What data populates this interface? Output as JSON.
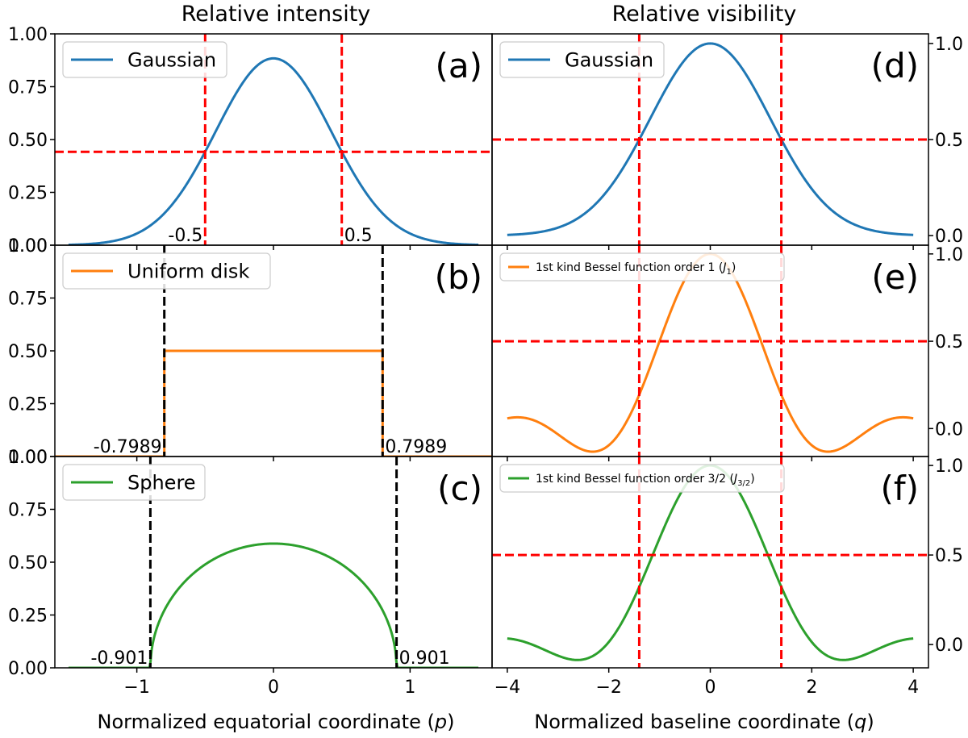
{
  "figure": {
    "left_title": "Relative intensity",
    "right_title": "Relative visibility",
    "left_xlabel_main": "Normalized equatorial coordinate (",
    "left_xlabel_var": "p",
    "left_xlabel_close": ")",
    "right_xlabel_main": "Normalized baseline coordinate (",
    "right_xlabel_var": "q",
    "right_xlabel_close": ")",
    "colors": {
      "blue": "#1f77b4",
      "orange": "#ff7f0e",
      "green": "#2ca02c",
      "red": "#ff0000",
      "black": "#000000"
    }
  },
  "chart_data": [
    {
      "id": "a",
      "panel_label": "(a)",
      "type": "line",
      "series": [
        {
          "name": "Gaussian",
          "color": "#1f77b4",
          "function": "gaussian",
          "peak": 0.884,
          "fwhm": 1.0
        }
      ],
      "xlim": [
        -1.6,
        1.6
      ],
      "ylim": [
        0,
        1.0
      ],
      "yticks": [
        0,
        0.25,
        0.5,
        0.75,
        1.0
      ],
      "ytick_labels": [
        "0.00",
        "0.25",
        "0.50",
        "0.75",
        "1.00"
      ],
      "xticks": [
        -1,
        0,
        1
      ],
      "xtick_labels": [
        "−1",
        "0",
        "1"
      ],
      "show_xticklabels": false,
      "vlines": [
        {
          "x": -0.5,
          "color": "#ff0000",
          "style": "dashed"
        },
        {
          "x": 0.5,
          "color": "#ff0000",
          "style": "dashed"
        }
      ],
      "hlines": [
        {
          "y": 0.442,
          "color": "#ff0000",
          "style": "dashed"
        }
      ],
      "annotations": [
        {
          "text": "-0.5",
          "x": -0.5,
          "anchor": "end"
        },
        {
          "text": "0.5",
          "x": 0.5,
          "anchor": "start"
        }
      ],
      "legend": "upper-left"
    },
    {
      "id": "b",
      "panel_label": "(b)",
      "type": "line",
      "series": [
        {
          "name": "Uniform disk",
          "color": "#ff7f0e",
          "function": "uniform_disk",
          "height": 0.5,
          "radius": 0.7989
        }
      ],
      "xlim": [
        -1.6,
        1.6
      ],
      "ylim": [
        0,
        1.0
      ],
      "yticks": [
        0,
        0.25,
        0.5,
        0.75,
        1.0
      ],
      "ytick_labels": [
        "0.00",
        "0.25",
        "0.50",
        "0.75",
        "1.00"
      ],
      "xticks": [
        -1,
        0,
        1
      ],
      "xtick_labels": [
        "−1",
        "0",
        "1"
      ],
      "show_xticklabels": false,
      "vlines": [
        {
          "x": -0.7989,
          "color": "#000000",
          "style": "dashed"
        },
        {
          "x": 0.7989,
          "color": "#000000",
          "style": "dashed"
        }
      ],
      "hlines": [],
      "annotations": [
        {
          "text": "-0.7989",
          "x": -0.7989,
          "anchor": "end"
        },
        {
          "text": "0.7989",
          "x": 0.7989,
          "anchor": "start"
        }
      ],
      "legend": "upper-left"
    },
    {
      "id": "c",
      "panel_label": "(c)",
      "type": "line",
      "series": [
        {
          "name": "Sphere",
          "color": "#2ca02c",
          "function": "sphere",
          "peak": 0.588,
          "radius": 0.901
        }
      ],
      "xlim": [
        -1.6,
        1.6
      ],
      "ylim": [
        0,
        1.0
      ],
      "yticks": [
        0,
        0.25,
        0.5,
        0.75,
        1.0
      ],
      "ytick_labels": [
        "0.00",
        "0.25",
        "0.50",
        "0.75",
        "1.00"
      ],
      "xticks": [
        -1,
        0,
        1
      ],
      "xtick_labels": [
        "−1",
        "0",
        "1"
      ],
      "show_xticklabels": true,
      "vlines": [
        {
          "x": -0.901,
          "color": "#000000",
          "style": "dashed"
        },
        {
          "x": 0.901,
          "color": "#000000",
          "style": "dashed"
        }
      ],
      "hlines": [],
      "annotations": [
        {
          "text": "-0.901",
          "x": -0.901,
          "anchor": "end"
        },
        {
          "text": "0.901",
          "x": 0.901,
          "anchor": "start"
        }
      ],
      "legend": "upper-left"
    },
    {
      "id": "d",
      "panel_label": "(d)",
      "type": "line",
      "series": [
        {
          "name": "Gaussian",
          "color": "#1f77b4",
          "function": "gaussian_vis",
          "peak": 1.0,
          "half_q": 1.4
        }
      ],
      "xlim": [
        -4.3,
        4.3
      ],
      "ylim": [
        -0.05,
        1.05
      ],
      "yticks": [
        0,
        0.5,
        1.0
      ],
      "ytick_labels": [
        "0.0",
        "0.5",
        "1.0"
      ],
      "xticks": [
        -4,
        -2,
        0,
        2,
        4
      ],
      "xtick_labels": [
        "−4",
        "−2",
        "0",
        "2",
        "4"
      ],
      "show_xticklabels": false,
      "vlines": [
        {
          "x": -1.4,
          "color": "#ff0000",
          "style": "dashed"
        },
        {
          "x": 1.4,
          "color": "#ff0000",
          "style": "dashed"
        }
      ],
      "hlines": [
        {
          "y": 0.5,
          "color": "#ff0000",
          "style": "dashed"
        }
      ],
      "annotations": [],
      "legend": "upper-left"
    },
    {
      "id": "e",
      "panel_label": "(e)",
      "type": "line",
      "series": [
        {
          "name": "1st kind Bessel function order 1 (",
          "name_sym": "J",
          "name_sub": "1",
          "name_tail": ")",
          "color": "#ff7f0e",
          "function": "bessel_j1"
        }
      ],
      "xlim": [
        -4.3,
        4.3
      ],
      "ylim": [
        -0.16,
        1.05
      ],
      "yticks": [
        0,
        0.5,
        1.0
      ],
      "ytick_labels": [
        "0.0",
        "0.5",
        "1.0"
      ],
      "xticks": [
        -4,
        -2,
        0,
        2,
        4
      ],
      "xtick_labels": [
        "−4",
        "−2",
        "0",
        "2",
        "4"
      ],
      "show_xticklabels": false,
      "vlines": [
        {
          "x": -1.4,
          "color": "#ff0000",
          "style": "dashed"
        },
        {
          "x": 1.4,
          "color": "#ff0000",
          "style": "dashed"
        }
      ],
      "hlines": [
        {
          "y": 0.5,
          "color": "#ff0000",
          "style": "dashed"
        }
      ],
      "annotations": [],
      "legend": "upper-left"
    },
    {
      "id": "f",
      "panel_label": "(f)",
      "type": "line",
      "series": [
        {
          "name": "1st kind Bessel function order 3/2 (",
          "name_sym": "J",
          "name_sub": "3/2",
          "name_tail": ")",
          "color": "#2ca02c",
          "function": "bessel_j32"
        }
      ],
      "xlim": [
        -4.3,
        4.3
      ],
      "ylim": [
        -0.13,
        1.05
      ],
      "yticks": [
        0,
        0.5,
        1.0
      ],
      "ytick_labels": [
        "0.0",
        "0.5",
        "1.0"
      ],
      "xticks": [
        -4,
        -2,
        0,
        2,
        4
      ],
      "xtick_labels": [
        "−4",
        "−2",
        "0",
        "2",
        "4"
      ],
      "show_xticklabels": true,
      "vlines": [
        {
          "x": -1.4,
          "color": "#ff0000",
          "style": "dashed"
        },
        {
          "x": 1.4,
          "color": "#ff0000",
          "style": "dashed"
        }
      ],
      "hlines": [
        {
          "y": 0.5,
          "color": "#ff0000",
          "style": "dashed"
        }
      ],
      "annotations": [],
      "legend": "upper-left"
    }
  ]
}
